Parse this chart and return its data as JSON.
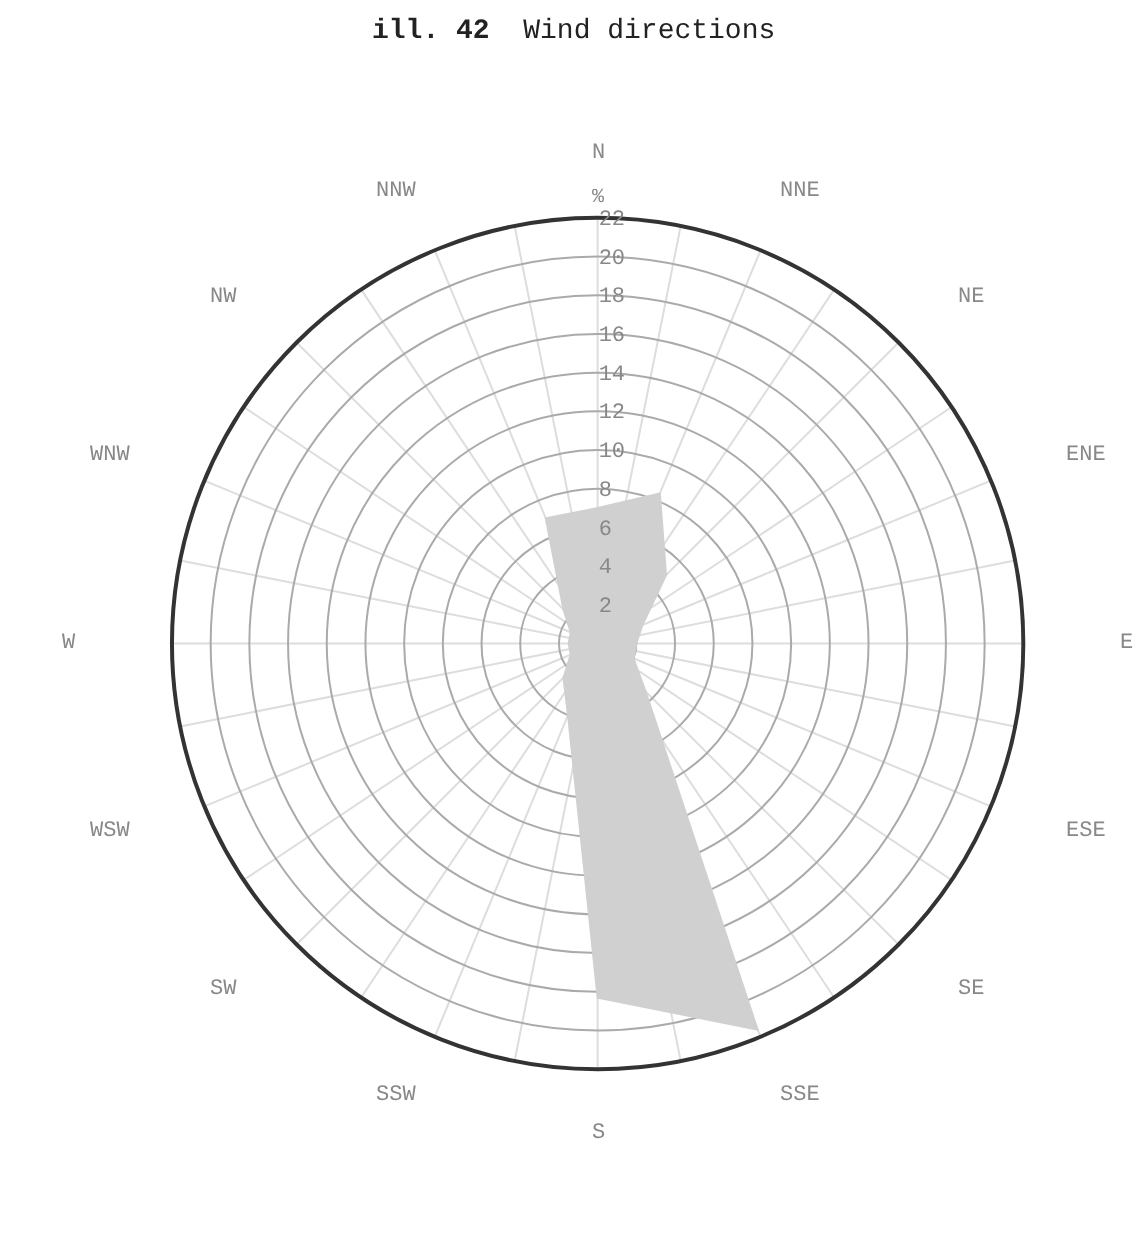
{
  "chart_data": {
    "type": "radar",
    "title": "ill. 42 Wind directions",
    "ylabel": "%",
    "categories": [
      "N",
      "NNE",
      "NE",
      "ENE",
      "E",
      "ESE",
      "SE",
      "SSE",
      "S",
      "SSW",
      "SW",
      "WSW",
      "W",
      "WNW",
      "NW",
      "NNW"
    ],
    "series": [
      {
        "color": "#d0d0d0",
        "values": [
          7.0,
          8.4,
          5.0,
          2.5,
          2.0,
          2.0,
          3.5,
          21.6,
          18.3,
          4.0,
          2.5,
          1.5,
          1.5,
          1.5,
          2.5,
          7.0
        ]
      }
    ],
    "ylim": [
      0,
      22
    ],
    "yticks": [
      2,
      4,
      6,
      8,
      10,
      12,
      14,
      16,
      18,
      20,
      22
    ],
    "grid": true,
    "marker": "none"
  }
}
